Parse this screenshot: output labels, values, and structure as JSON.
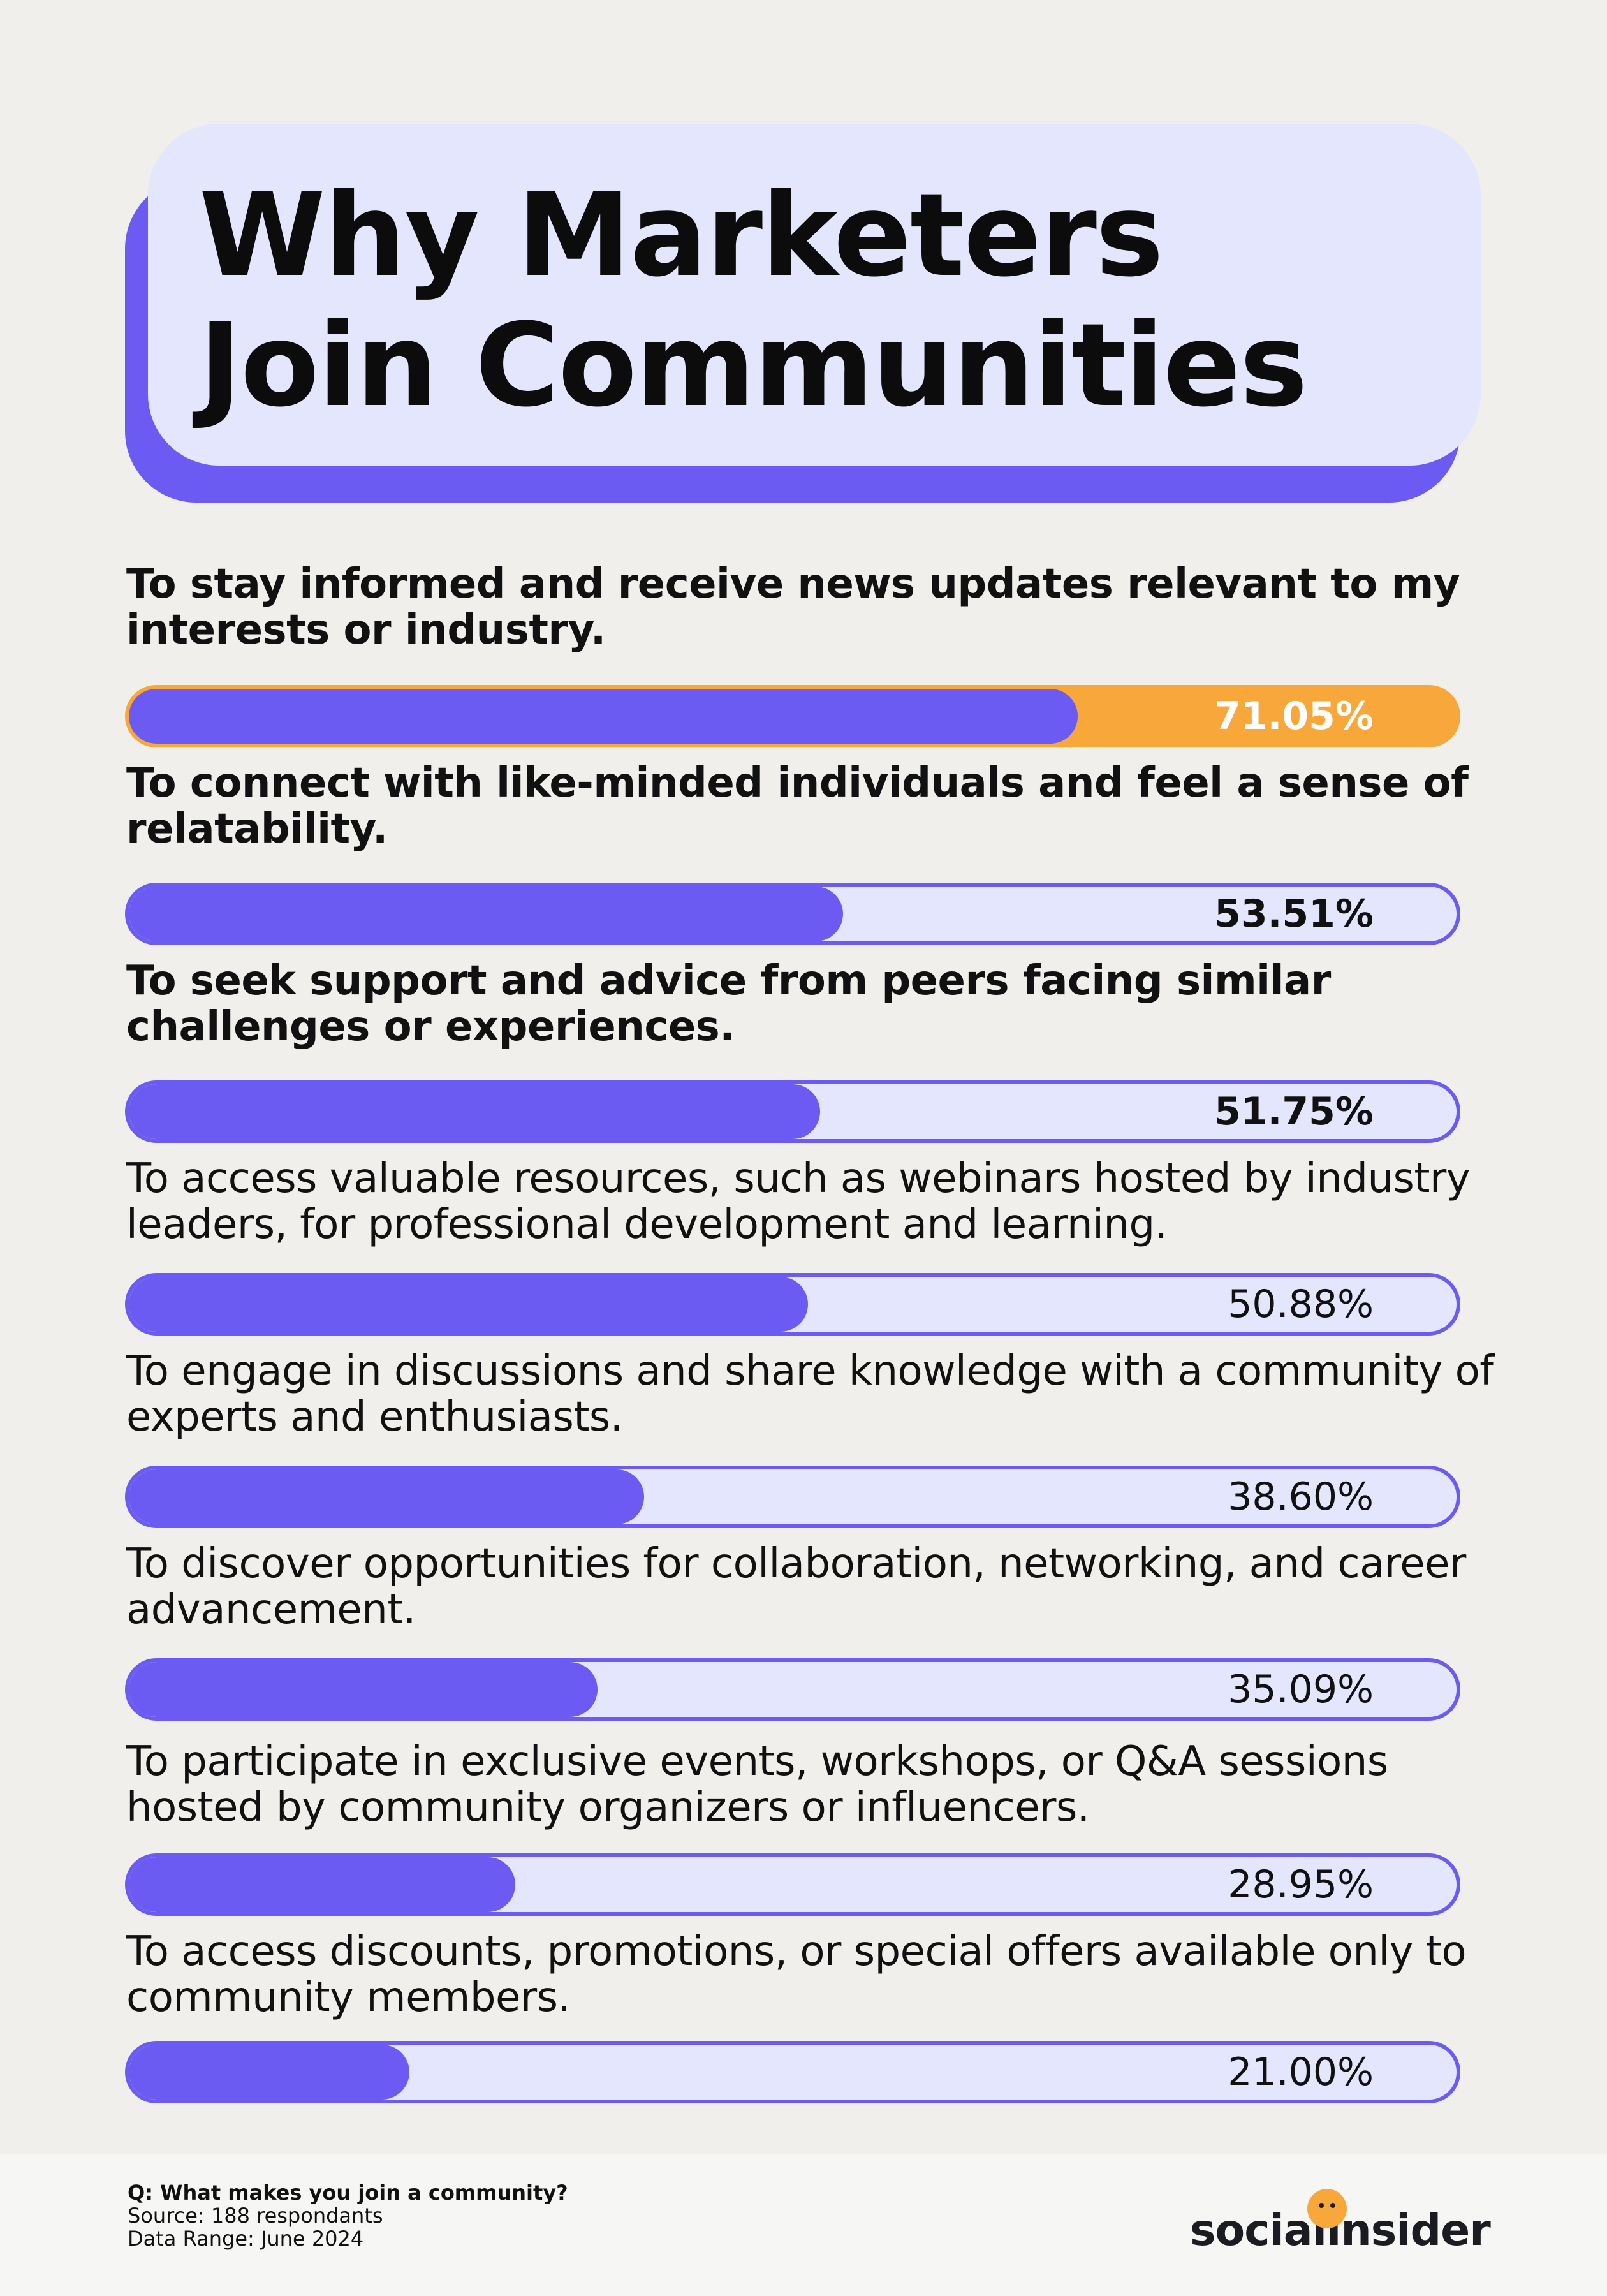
{
  "title": "Why Marketers Join Communities",
  "chart_data": {
    "type": "bar",
    "orientation": "horizontal",
    "title": "Why Marketers Join Communities",
    "xlim": [
      0,
      100
    ],
    "unit": "%",
    "categories": [
      "To stay informed and receive news updates relevant to my interests or industry.",
      "To connect with like-minded individuals and feel a sense of relatability.",
      "To seek support and advice from peers facing similar challenges or experiences.",
      "To access valuable resources, such as webinars hosted by industry leaders, for professional development and learning.",
      "To engage in discussions and share knowledge with a community of experts and enthusiasts.",
      "To discover opportunities for collaboration, networking, and career advancement.",
      "To participate in exclusive events, workshops, or Q&A sessions hosted by community organizers or influencers.",
      "To access discounts, promotions, or special offers available only to community members."
    ],
    "values": [
      71.05,
      53.51,
      51.75,
      50.88,
      38.6,
      35.09,
      28.95,
      21.0
    ],
    "value_labels": [
      "71.05%",
      "53.51%",
      "51.75%",
      "50.88%",
      "38.60%",
      "35.09%",
      "28.95%",
      "21.00%"
    ],
    "bold_items": [
      true,
      true,
      true,
      false,
      false,
      false,
      false,
      false
    ],
    "highlight_index": 0,
    "colors": {
      "bar_fill": "#6b5bf3",
      "bar_track": "#e3e6fd",
      "highlight": "#f8a83a"
    }
  },
  "footer": {
    "question": "Q: What makes you join a community?",
    "source": "Source: 188 respondants",
    "range": "Data Range: June 2024"
  },
  "logo": {
    "text": "socialinsider",
    "icon": "smiley-dot-icon",
    "color": "#f8a83a"
  }
}
